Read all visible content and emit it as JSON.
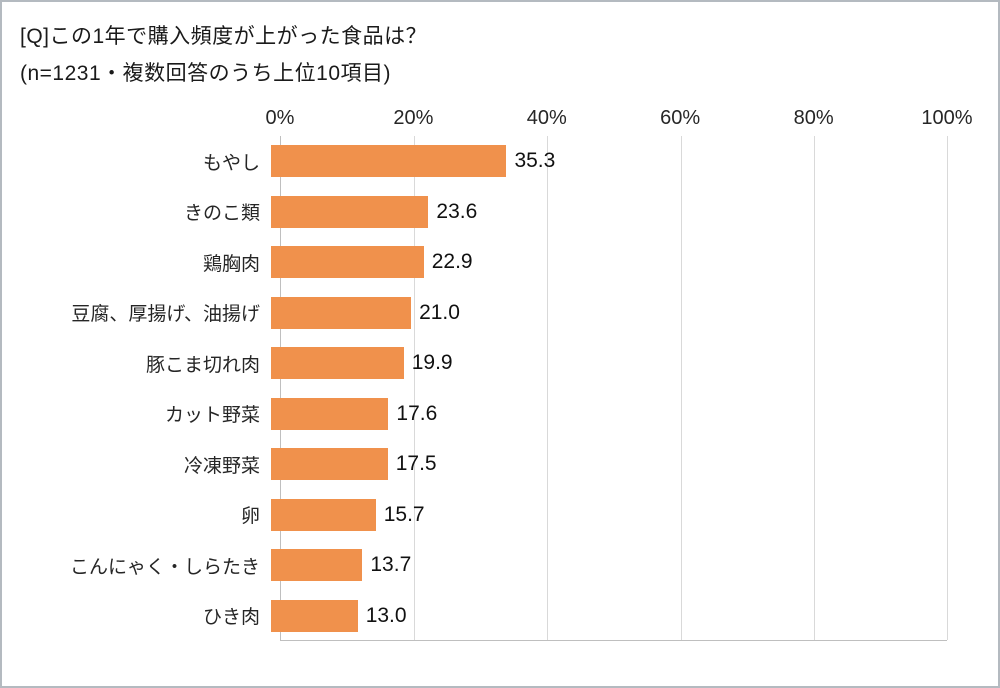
{
  "header": {
    "title": "[Q]この1年で購入頻度が上がった食品は？",
    "subtitle": "(n=1231・複数回答のうち上位10項目)"
  },
  "chart_data": {
    "type": "bar",
    "orientation": "horizontal",
    "title": "[Q]この1年で購入頻度が上がった食品は？",
    "subtitle": "(n=1231・複数回答のうち上位10項目)",
    "categories": [
      "もやし",
      "きのこ類",
      "鶏胸肉",
      "豆腐、厚揚げ、油揚げ",
      "豚こま切れ肉",
      "カット野菜",
      "冷凍野菜",
      "卵",
      "こんにゃく・しらたき",
      "ひき肉"
    ],
    "values": [
      35.3,
      23.6,
      22.9,
      21.0,
      19.9,
      17.6,
      17.5,
      15.7,
      13.7,
      13.0
    ],
    "value_labels": [
      "35.3",
      "23.6",
      "22.9",
      "21.0",
      "19.9",
      "17.6",
      "17.5",
      "15.7",
      "13.7",
      "13.0"
    ],
    "xlim": [
      0,
      100
    ],
    "x_ticks": [
      "0%",
      "20%",
      "40%",
      "60%",
      "80%",
      "100%"
    ],
    "xlabel": "",
    "ylabel": "",
    "grid": true,
    "legend": false,
    "bar_color": "#F0914C",
    "gridline_color": "#d9d9d9",
    "axis_color": "#bfbfbf"
  }
}
